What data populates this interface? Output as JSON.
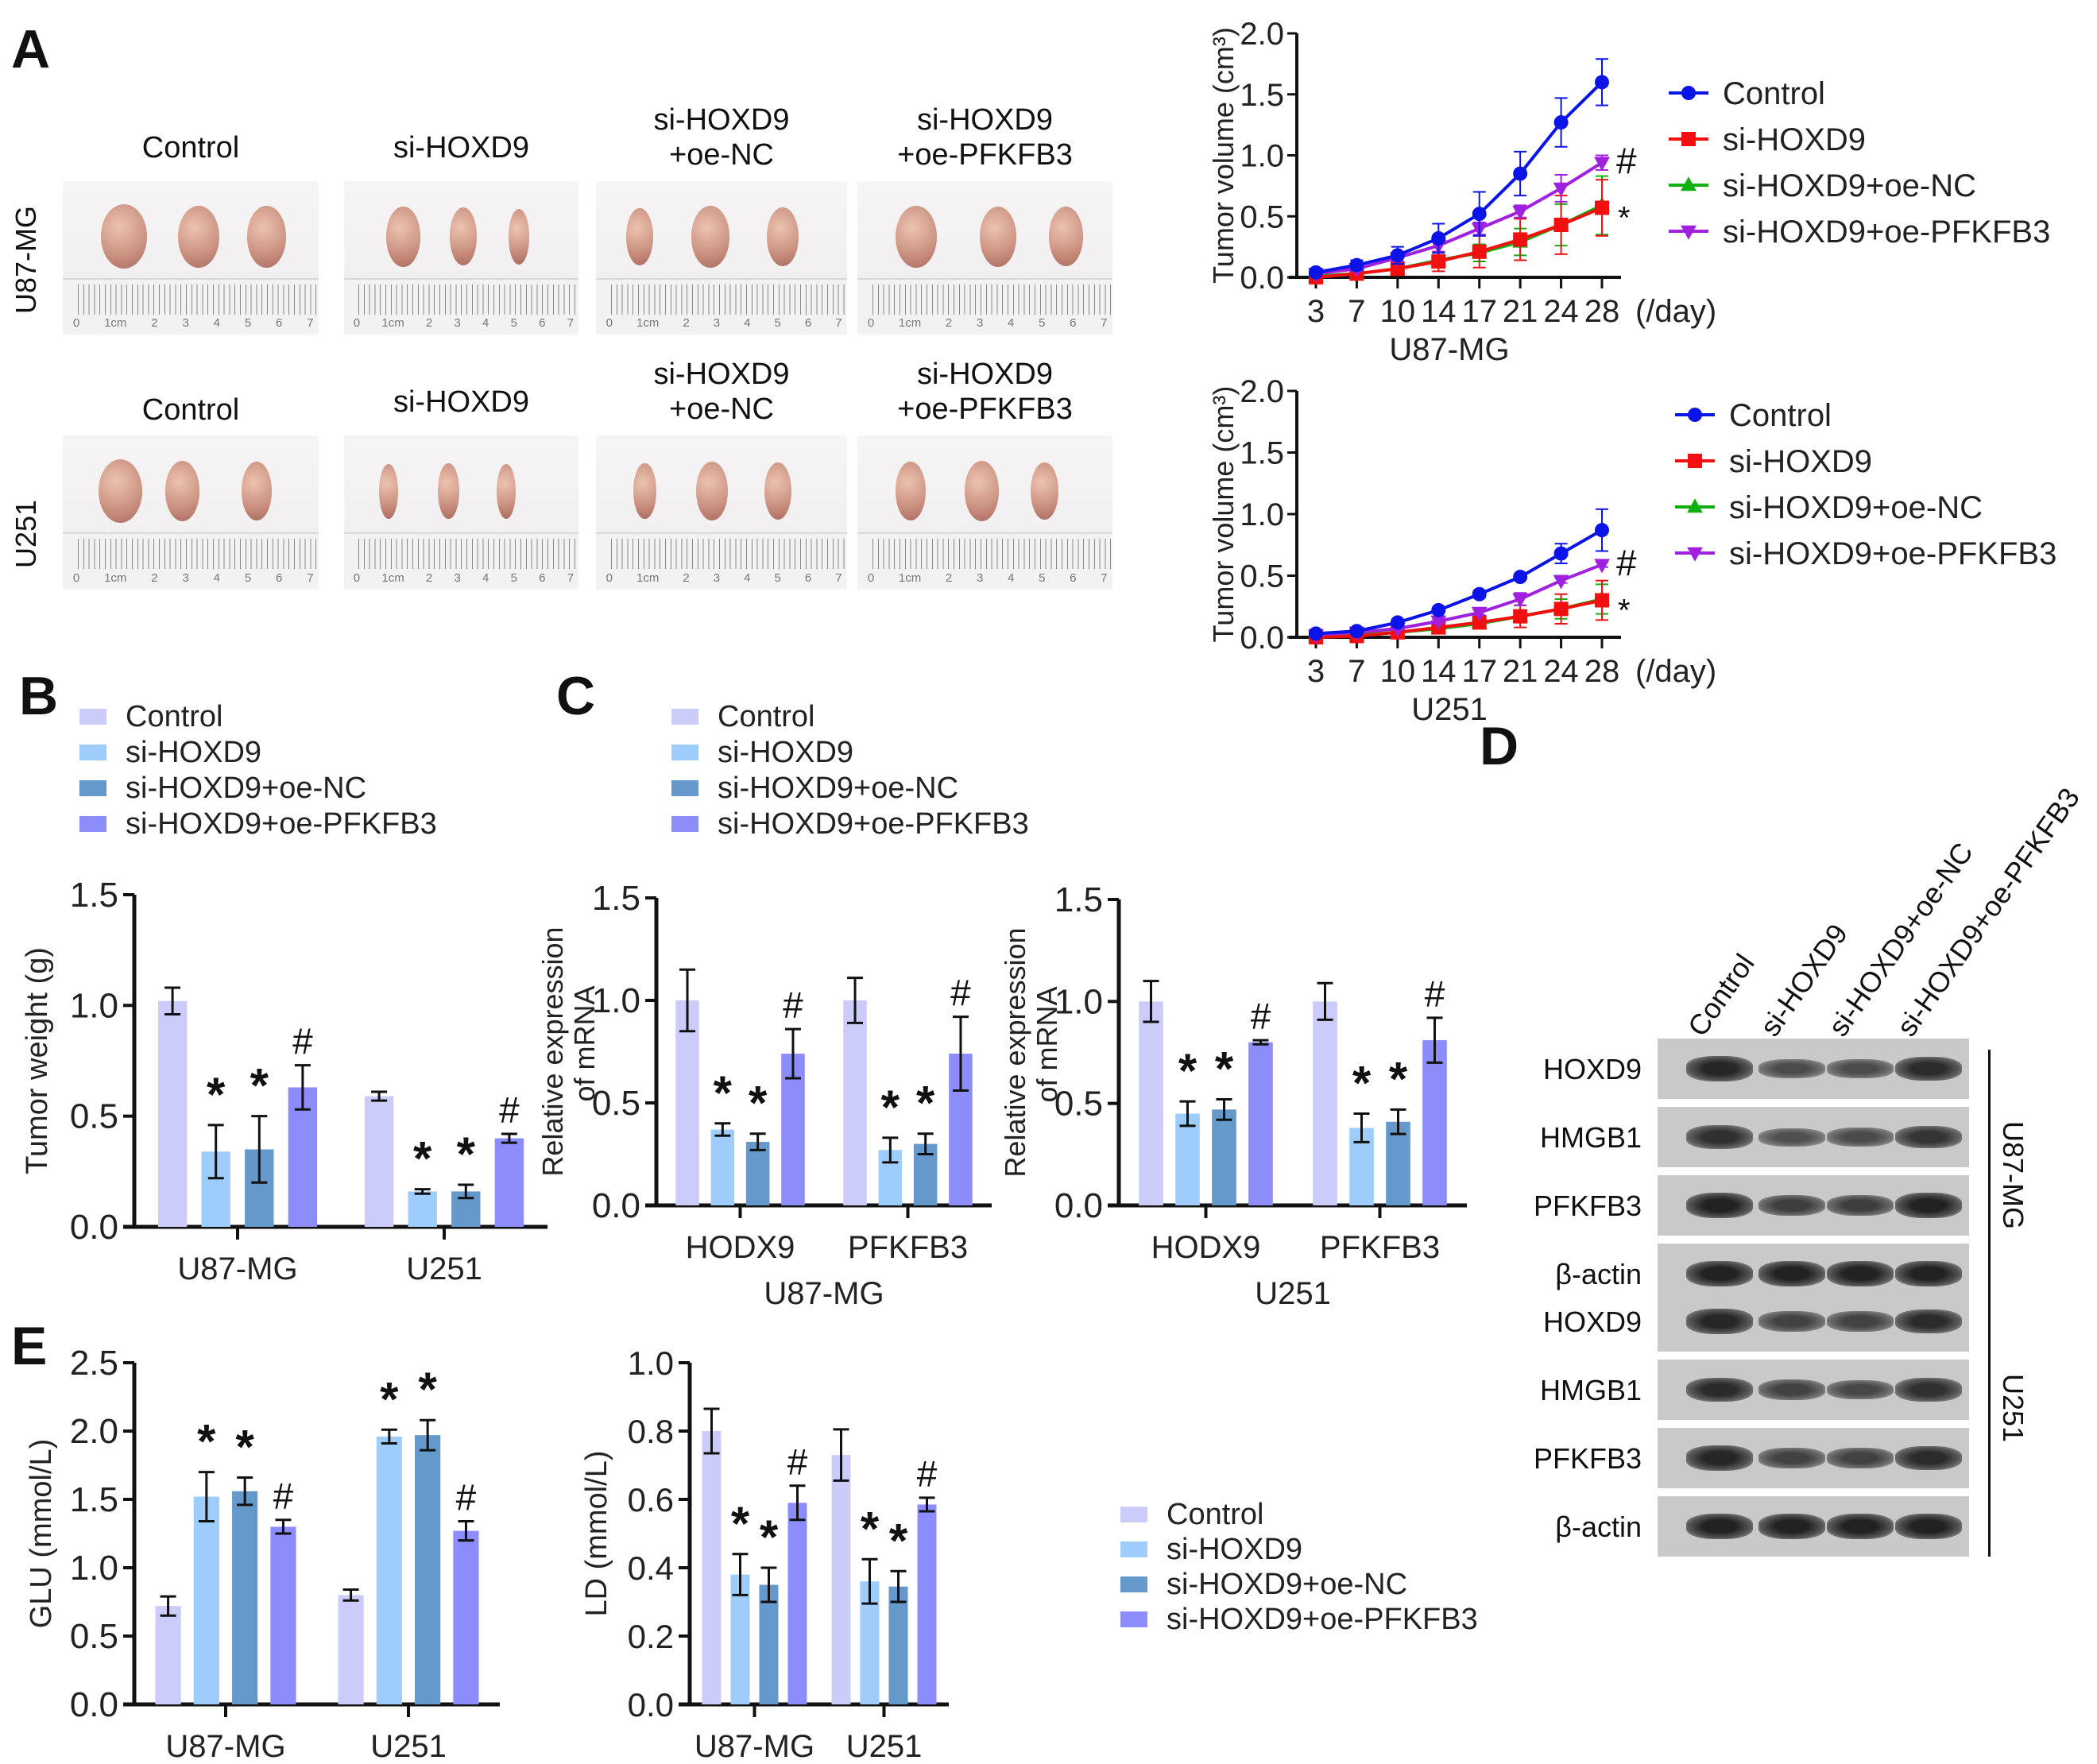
{
  "panels": {
    "A": "A",
    "B": "B",
    "C": "C",
    "D": "D",
    "E": "E"
  },
  "groups": [
    "Control",
    "si-HOXD9",
    "si-HOXD9+oe-NC",
    "si-HOXD9+oe-PFKFB3"
  ],
  "group_colors": {
    "bar": [
      "#ccccfa",
      "#9ecdfb",
      "#6699cb",
      "#8d8cfb"
    ],
    "line": [
      "#0a14e6",
      "#f01010",
      "#10b010",
      "#a020e0"
    ]
  },
  "photos": {
    "row_labels": [
      "U87-MG",
      "U251"
    ],
    "titles": [
      {
        "line1": "Control",
        "line2": ""
      },
      {
        "line1": "si-HOXD9",
        "line2": ""
      },
      {
        "line1": "si-HOXD9",
        "line2": "+oe-NC"
      },
      {
        "line1": "si-HOXD9",
        "line2": "+oe-PFKFB3"
      }
    ],
    "ruler_numbers": [
      "0",
      "1cm",
      "2",
      "3",
      "4",
      "5",
      "6",
      "7"
    ]
  },
  "chart_data": [
    {
      "id": "A-line-U87",
      "type": "line",
      "title": "",
      "xlabel": "U87-MG",
      "x_unit": "(/day)",
      "ylabel": "Tumor volume (cm³)",
      "x": [
        3,
        7,
        10,
        14,
        17,
        21,
        24,
        28
      ],
      "ylim": [
        0,
        2.0
      ],
      "yticks": [
        "0.0",
        "0.5",
        "1.0",
        "1.5",
        "2.0"
      ],
      "legend": "right",
      "series": [
        {
          "name": "Control",
          "marker": "circle",
          "values": [
            0.04,
            0.1,
            0.18,
            0.32,
            0.52,
            0.85,
            1.27,
            1.6
          ],
          "err": [
            0.03,
            0.04,
            0.07,
            0.12,
            0.18,
            0.18,
            0.2,
            0.19
          ]
        },
        {
          "name": "si-HOXD9",
          "marker": "square",
          "values": [
            0.0,
            0.03,
            0.07,
            0.13,
            0.21,
            0.31,
            0.43,
            0.57
          ],
          "err": [
            0.02,
            0.02,
            0.04,
            0.08,
            0.13,
            0.17,
            0.24,
            0.23
          ]
        },
        {
          "name": "si-HOXD9+oe-NC",
          "marker": "triangle-up",
          "values": [
            0.01,
            0.03,
            0.07,
            0.14,
            0.2,
            0.29,
            0.43,
            0.59
          ],
          "err": [
            0.02,
            0.02,
            0.04,
            0.06,
            0.07,
            0.11,
            0.17,
            0.24
          ]
        },
        {
          "name": "si-HOXD9+oe-PFKFB3",
          "marker": "triangle-down",
          "values": [
            0.03,
            0.07,
            0.16,
            0.26,
            0.4,
            0.54,
            0.73,
            0.94
          ],
          "err": [
            0.02,
            0.02,
            0.03,
            0.05,
            0.05,
            0.05,
            0.11,
            0.06
          ]
        }
      ],
      "annotations": [
        {
          "text": "#",
          "series": "si-HOXD9+oe-PFKFB3"
        },
        {
          "text": "*",
          "series": "si-HOXD9"
        }
      ]
    },
    {
      "id": "A-line-U251",
      "type": "line",
      "title": "",
      "xlabel": "U251",
      "x_unit": "(/day)",
      "ylabel": "Tumor volume (cm³)",
      "x": [
        3,
        7,
        10,
        14,
        17,
        21,
        24,
        28
      ],
      "ylim": [
        0,
        2.0
      ],
      "yticks": [
        "0.0",
        "0.5",
        "1.0",
        "1.5",
        "2.0"
      ],
      "legend": "right",
      "series": [
        {
          "name": "Control",
          "marker": "circle",
          "values": [
            0.03,
            0.05,
            0.12,
            0.22,
            0.35,
            0.49,
            0.68,
            0.87
          ],
          "err": [
            0.01,
            0.01,
            0.01,
            0.01,
            0.03,
            0.02,
            0.08,
            0.17
          ]
        },
        {
          "name": "si-HOXD9",
          "marker": "square",
          "values": [
            0.0,
            0.01,
            0.04,
            0.08,
            0.12,
            0.17,
            0.23,
            0.3
          ],
          "err": [
            0.01,
            0.01,
            0.01,
            0.02,
            0.05,
            0.09,
            0.12,
            0.16
          ]
        },
        {
          "name": "si-HOXD9+oe-NC",
          "marker": "triangle-up",
          "values": [
            0.01,
            0.02,
            0.04,
            0.07,
            0.11,
            0.17,
            0.23,
            0.31
          ],
          "err": [
            0.01,
            0.01,
            0.01,
            0.02,
            0.04,
            0.05,
            0.08,
            0.12
          ]
        },
        {
          "name": "si-HOXD9+oe-PFKFB3",
          "marker": "triangle-down",
          "values": [
            0.02,
            0.04,
            0.07,
            0.13,
            0.2,
            0.31,
            0.46,
            0.59
          ],
          "err": [
            0.01,
            0.01,
            0.01,
            0.02,
            0.02,
            0.05,
            0.02,
            0.02
          ]
        }
      ],
      "annotations": [
        {
          "text": "#",
          "series": "si-HOXD9+oe-PFKFB3"
        },
        {
          "text": "*",
          "series": "si-HOXD9"
        }
      ]
    },
    {
      "id": "B-tumor-weight",
      "type": "bar",
      "ylabel": "Tumor weight (g)",
      "categories": [
        "U87-MG",
        "U251"
      ],
      "ylim": [
        0,
        1.5
      ],
      "yticks": [
        "0.0",
        "0.5",
        "1.0",
        "1.5"
      ],
      "legend": "top-left",
      "series": [
        {
          "name": "Control",
          "values": [
            1.02,
            0.59
          ],
          "err": [
            0.06,
            0.02
          ],
          "marks": [
            "",
            ""
          ]
        },
        {
          "name": "si-HOXD9",
          "values": [
            0.34,
            0.16
          ],
          "err": [
            0.12,
            0.01
          ],
          "marks": [
            "*",
            "*"
          ]
        },
        {
          "name": "si-HOXD9+oe-NC",
          "values": [
            0.35,
            0.16
          ],
          "err": [
            0.15,
            0.03
          ],
          "marks": [
            "*",
            "*"
          ]
        },
        {
          "name": "si-HOXD9+oe-PFKFB3",
          "values": [
            0.63,
            0.4
          ],
          "err": [
            0.1,
            0.02
          ],
          "marks": [
            "#",
            "#"
          ]
        }
      ]
    },
    {
      "id": "C-mRNA-U87",
      "type": "bar",
      "ylabel": "Relative expression of mRNA",
      "ylabel_lines": [
        "Relative expression",
        "of mRNA"
      ],
      "xlabel": "U87-MG",
      "categories": [
        "HODX9",
        "PFKFB3"
      ],
      "ylim": [
        0,
        1.5
      ],
      "yticks": [
        "0.0",
        "0.5",
        "1.0",
        "1.5"
      ],
      "legend": "top-left",
      "series": [
        {
          "name": "Control",
          "values": [
            1.0,
            1.0
          ],
          "err": [
            0.15,
            0.11
          ],
          "marks": [
            "",
            ""
          ]
        },
        {
          "name": "si-HOXD9",
          "values": [
            0.37,
            0.27
          ],
          "err": [
            0.03,
            0.06
          ],
          "marks": [
            "*",
            "*"
          ]
        },
        {
          "name": "si-HOXD9+oe-NC",
          "values": [
            0.31,
            0.3
          ],
          "err": [
            0.04,
            0.05
          ],
          "marks": [
            "*",
            "*"
          ]
        },
        {
          "name": "si-HOXD9+oe-PFKFB3",
          "values": [
            0.74,
            0.74
          ],
          "err": [
            0.12,
            0.18
          ],
          "marks": [
            "#",
            "#"
          ]
        }
      ]
    },
    {
      "id": "C-mRNA-U251",
      "type": "bar",
      "ylabel": "Relative expression of mRNA",
      "ylabel_lines": [
        "Relative expression",
        "of mRNA"
      ],
      "xlabel": "U251",
      "categories": [
        "HODX9",
        "PFKFB3"
      ],
      "ylim": [
        0,
        1.5
      ],
      "yticks": [
        "0.0",
        "0.5",
        "1.0",
        "1.5"
      ],
      "series": [
        {
          "name": "Control",
          "values": [
            1.0,
            1.0
          ],
          "err": [
            0.1,
            0.09
          ],
          "marks": [
            "",
            ""
          ]
        },
        {
          "name": "si-HOXD9",
          "values": [
            0.45,
            0.38
          ],
          "err": [
            0.06,
            0.07
          ],
          "marks": [
            "*",
            "*"
          ]
        },
        {
          "name": "si-HOXD9+oe-NC",
          "values": [
            0.47,
            0.41
          ],
          "err": [
            0.05,
            0.06
          ],
          "marks": [
            "*",
            "*"
          ]
        },
        {
          "name": "si-HOXD9+oe-PFKFB3",
          "values": [
            0.8,
            0.81
          ],
          "err": [
            0.01,
            0.11
          ],
          "marks": [
            "#",
            "#"
          ]
        }
      ]
    },
    {
      "id": "E-GLU",
      "type": "bar",
      "ylabel": "GLU (mmol/L)",
      "categories": [
        "U87-MG",
        "U251"
      ],
      "ylim": [
        0,
        2.5
      ],
      "yticks": [
        "0.0",
        "0.5",
        "1.0",
        "1.5",
        "2.0",
        "2.5"
      ],
      "series": [
        {
          "name": "Control",
          "values": [
            0.72,
            0.8
          ],
          "err": [
            0.07,
            0.04
          ],
          "marks": [
            "",
            ""
          ]
        },
        {
          "name": "si-HOXD9",
          "values": [
            1.52,
            1.96
          ],
          "err": [
            0.18,
            0.05
          ],
          "marks": [
            "*",
            "*"
          ]
        },
        {
          "name": "si-HOXD9+oe-NC",
          "values": [
            1.56,
            1.97
          ],
          "err": [
            0.1,
            0.11
          ],
          "marks": [
            "*",
            "*"
          ]
        },
        {
          "name": "si-HOXD9+oe-PFKFB3",
          "values": [
            1.3,
            1.27
          ],
          "err": [
            0.05,
            0.07
          ],
          "marks": [
            "#",
            "#"
          ]
        }
      ]
    },
    {
      "id": "E-LD",
      "type": "bar",
      "ylabel": "LD (mmol/L)",
      "categories": [
        "U87-MG",
        "U251"
      ],
      "ylim": [
        0,
        1.0
      ],
      "yticks": [
        "0.0",
        "0.2",
        "0.4",
        "0.6",
        "0.8",
        "1.0"
      ],
      "legend": "right",
      "series": [
        {
          "name": "Control",
          "values": [
            0.8,
            0.73
          ],
          "err": [
            0.065,
            0.075
          ],
          "marks": [
            "",
            ""
          ]
        },
        {
          "name": "si-HOXD9",
          "values": [
            0.38,
            0.36
          ],
          "err": [
            0.06,
            0.065
          ],
          "marks": [
            "*",
            "*"
          ]
        },
        {
          "name": "si-HOXD9+oe-NC",
          "values": [
            0.35,
            0.345
          ],
          "err": [
            0.05,
            0.045
          ],
          "marks": [
            "*",
            "*"
          ]
        },
        {
          "name": "si-HOXD9+oe-PFKFB3",
          "values": [
            0.59,
            0.585
          ],
          "err": [
            0.05,
            0.02
          ],
          "marks": [
            "#",
            "#"
          ]
        }
      ]
    }
  ],
  "western_blot": {
    "lanes": [
      "Control",
      "si-HOXD9",
      "si-HOXD9+oe-NC",
      "si-HOXD9+oe-PFKFB3"
    ],
    "blocks": [
      {
        "cell_line": "U87-MG",
        "rows": [
          {
            "protein": "HOXD9",
            "intensity": [
              0.95,
              0.55,
              0.55,
              0.9
            ]
          },
          {
            "protein": "HMGB1",
            "intensity": [
              0.85,
              0.5,
              0.55,
              0.8
            ]
          },
          {
            "protein": "PFKFB3",
            "intensity": [
              1.0,
              0.7,
              0.7,
              1.0
            ]
          },
          {
            "protein": "β-actin",
            "intensity": [
              1.0,
              1.0,
              1.0,
              1.0
            ]
          }
        ]
      },
      {
        "cell_line": "U251",
        "rows": [
          {
            "protein": "HOXD9",
            "intensity": [
              0.95,
              0.65,
              0.65,
              0.9
            ]
          },
          {
            "protein": "HMGB1",
            "intensity": [
              0.9,
              0.65,
              0.6,
              0.85
            ]
          },
          {
            "protein": "PFKFB3",
            "intensity": [
              0.95,
              0.65,
              0.65,
              0.9
            ]
          },
          {
            "protein": "β-actin",
            "intensity": [
              1.0,
              1.0,
              1.0,
              1.0
            ]
          }
        ]
      }
    ]
  }
}
